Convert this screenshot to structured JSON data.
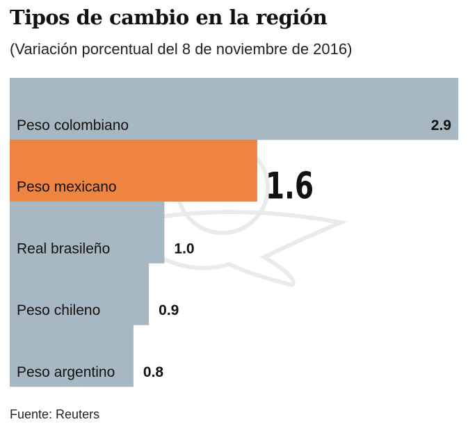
{
  "title": "Tipos de cambio en la región",
  "subtitle": "(Variación porcentual del 8 de noviembre de 2016)",
  "source": "Fuente: Reuters",
  "colors": {
    "bar": "#a8b8c2",
    "highlight": "#ef8440",
    "text": "#111111"
  },
  "chart_data": {
    "type": "bar",
    "orientation": "horizontal",
    "title": "Tipos de cambio en la región",
    "subtitle": "(Variación porcentual del 8 de noviembre de 2016)",
    "categories": [
      "Peso colombiano",
      "Peso mexicano",
      "Real brasileño",
      "Peso chileno",
      "Peso argentino"
    ],
    "values": [
      2.9,
      1.6,
      1.0,
      0.9,
      0.8
    ],
    "value_labels": [
      "2.9",
      "1.6",
      "1.0",
      "0.9",
      "0.8"
    ],
    "highlight": "Peso mexicano",
    "xlim": [
      0,
      2.9
    ],
    "grid": false,
    "legend": "none"
  }
}
